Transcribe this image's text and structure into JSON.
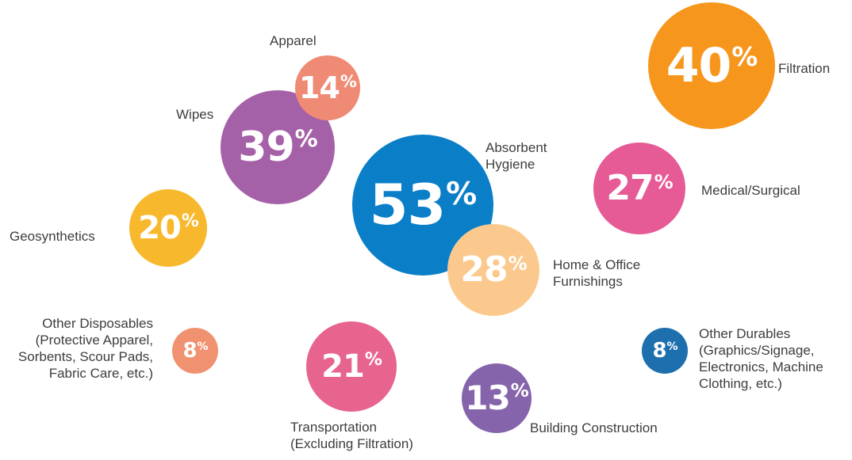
{
  "chart_data": {
    "type": "bubble",
    "title": "",
    "unit": "%",
    "items": [
      {
        "id": "absorbent-hygiene",
        "value": 53,
        "label_lines": [
          "Absorbent",
          "Hygiene"
        ],
        "color": "#0a7fc8"
      },
      {
        "id": "filtration",
        "value": 40,
        "label_lines": [
          "Filtration"
        ],
        "color": "#f7961c"
      },
      {
        "id": "wipes",
        "value": 39,
        "label_lines": [
          "Wipes"
        ],
        "color": "#a561a8"
      },
      {
        "id": "home-office-furnishings",
        "value": 28,
        "label_lines": [
          "Home & Office",
          "Furnishings"
        ],
        "color": "#fbc98d"
      },
      {
        "id": "medical-surgical",
        "value": 27,
        "label_lines": [
          "Medical/Surgical"
        ],
        "color": "#e65a96"
      },
      {
        "id": "transportation",
        "value": 21,
        "label_lines": [
          "Transportation",
          "(Excluding Filtration)"
        ],
        "color": "#e7648f"
      },
      {
        "id": "geosynthetics",
        "value": 20,
        "label_lines": [
          "Geosynthetics"
        ],
        "color": "#f8b82d"
      },
      {
        "id": "apparel",
        "value": 14,
        "label_lines": [
          "Apparel"
        ],
        "color": "#ef8a74"
      },
      {
        "id": "building-construction",
        "value": 13,
        "label_lines": [
          "Building Construction"
        ],
        "color": "#8664ab"
      },
      {
        "id": "other-disposables",
        "value": 8,
        "label_lines": [
          "Other Disposables",
          "(Protective Apparel,",
          "Sorbents, Scour Pads,",
          "Fabric Care, etc.)"
        ],
        "color": "#f09270"
      },
      {
        "id": "other-durables",
        "value": 8,
        "label_lines": [
          "Other Durables",
          "(Graphics/Signage,",
          "Electronics, Machine",
          "Clothing, etc.)"
        ],
        "color": "#1e6fae"
      }
    ]
  }
}
